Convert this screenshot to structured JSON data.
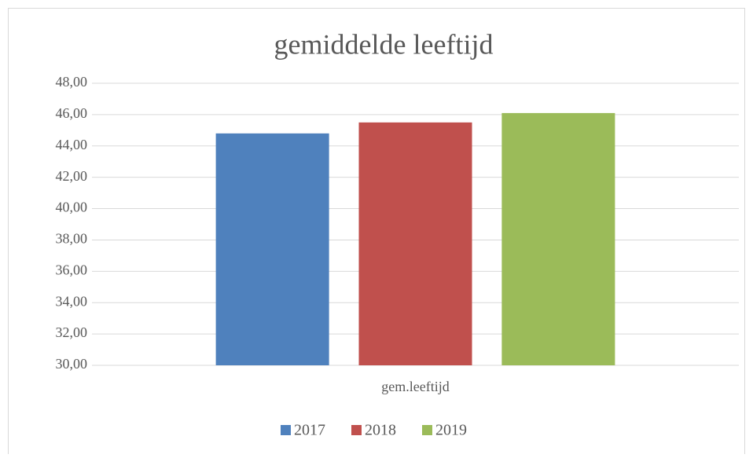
{
  "chart_data": {
    "type": "bar",
    "title": "gemiddelde leeftijd",
    "categories": [
      "gem.leeftijd"
    ],
    "series": [
      {
        "name": "2017",
        "color": "#4f81bd",
        "values": [
          44.8
        ]
      },
      {
        "name": "2018",
        "color": "#c0504d",
        "values": [
          45.5
        ]
      },
      {
        "name": "2019",
        "color": "#9bbb59",
        "values": [
          46.1
        ]
      }
    ],
    "ylim": [
      30,
      48
    ],
    "yticks": [
      {
        "value": 30,
        "label": "30,00"
      },
      {
        "value": 32,
        "label": "32,00"
      },
      {
        "value": 34,
        "label": "34,00"
      },
      {
        "value": 36,
        "label": "36,00"
      },
      {
        "value": 38,
        "label": "38,00"
      },
      {
        "value": 40,
        "label": "40,00"
      },
      {
        "value": 42,
        "label": "42,00"
      },
      {
        "value": 44,
        "label": "44,00"
      },
      {
        "value": 46,
        "label": "46,00"
      },
      {
        "value": 48,
        "label": "48,00"
      }
    ],
    "grid": true,
    "legend": "bottom"
  }
}
